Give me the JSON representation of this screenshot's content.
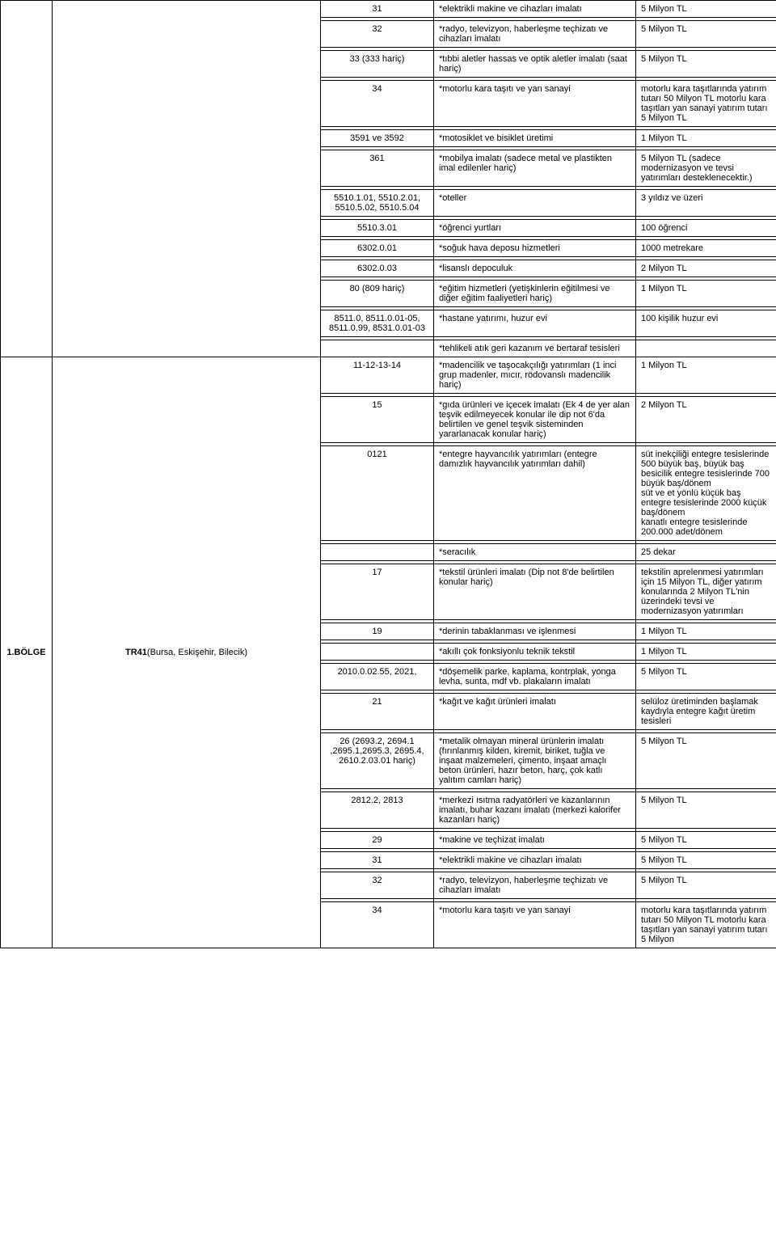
{
  "sections": [
    {
      "region_label": "",
      "area_label_html": "",
      "rows": [
        {
          "code": "31",
          "desc": "*elektrikli makine ve cihazları imalatı",
          "amount": "5 Milyon TL"
        },
        {
          "code": "32",
          "desc": "*radyo, televizyon, haberleşme teçhizatı ve cihazları imalatı",
          "amount": "5 Milyon TL"
        },
        {
          "code": "33 (333 hariç)",
          "desc": "*tıbbi aletler hassas ve optik aletler imalatı (saat hariç)",
          "amount": "5 Milyon TL"
        },
        {
          "code": "34",
          "desc": "*motorlu kara taşıtı ve yan sanayi",
          "amount": "motorlu kara taşıtlarında yatırım tutarı 50 Milyon TL motorlu kara taşıtları yan sanayi  yatırım tutarı 5 Milyon TL"
        },
        {
          "code": "3591 ve 3592",
          "desc": "*motosiklet ve bisiklet üretimi",
          "amount": "1 Milyon TL"
        },
        {
          "code": "361",
          "desc": "*mobilya imalatı (sadece metal ve plastikten imal edilenler hariç)",
          "amount": "5 Milyon TL (sadece modernizasyon ve tevsi yatırımları desteklenecektir.)"
        },
        {
          "code": "5510.1.01, 5510.2.01, 5510.5.02, 5510.5.04",
          "desc": "*oteller",
          "amount": "3 yıldız ve üzeri"
        },
        {
          "code": "5510.3.01",
          "desc": "*öğrenci yurtları",
          "amount": "100 öğrenci"
        },
        {
          "code": "6302.0.01",
          "desc": "*soğuk hava deposu hizmetleri",
          "amount": "1000 metrekare"
        },
        {
          "code": "6302.0.03",
          "desc": "*lisanslı depoculuk",
          "amount": "2 Milyon TL"
        },
        {
          "code": "80 (809 hariç)",
          "desc": "*eğitim hizmetleri (yetişkinlerin eğitilmesi ve diğer eğitim faaliyetleri hariç)",
          "amount": "1 Milyon TL"
        },
        {
          "code": "8511.0, 8511.0.01-05, 8511.0.99, 8531.0.01-03",
          "desc": "*hastane yatırımı, huzur evi",
          "amount": "100 kişilik huzur evi"
        },
        {
          "code": "",
          "desc": "*tehlikeli atık geri kazanım ve bertaraf tesisleri",
          "amount": ""
        }
      ]
    },
    {
      "region_label": "1.BÖLGE",
      "area_code": "TR41",
      "area_cities": "(Bursa, Eskişehir, Bilecik)",
      "rows": [
        {
          "code": "11-12-13-14",
          "desc": "*madencilik ve taşocakçılığı yatırımları (1 inci grup madenler, mıcır, rödovanslı madencilik hariç)",
          "amount": "1 Milyon TL"
        },
        {
          "code": "15",
          "desc": "*gıda ürünleri ve içecek imalatı (Ek 4 de yer alan teşvik edilmeyecek konular ile dip not 6'da belirtilen ve genel teşvik sisteminden yararlanacak konular hariç)",
          "amount": "2 Milyon TL"
        },
        {
          "code": "0121",
          "desc": "*entegre hayvancılık yatırımları (entegre damızlık hayvancılık yatırımları dahil)",
          "amount": "süt inekçiliği entegre tesislerinde 500 büyük baş, büyük baş besicilik entegre tesislerinde 700 büyük baş/dönem\nsüt ve et yönlü küçük baş entegre tesislerinde 2000 küçük baş/dönem\nkanatlı entegre tesislerinde 200.000 adet/dönem"
        },
        {
          "code": "",
          "desc": "*seracılık",
          "amount": "25 dekar"
        },
        {
          "code": "17",
          "desc": "*tekstil ürünleri imalatı (Dip not 8'de belirtilen konular hariç)",
          "amount": "tekstilin aprelenmesi yatırımları için 15 Milyon TL, diğer yatırım konularında 2 Milyon TL'nin üzerindeki tevsi ve modernizasyon yatırımları"
        },
        {
          "code": "19",
          "desc": "*derinin tabaklanması ve işlenmesi",
          "amount": "1 Milyon TL"
        },
        {
          "code": "",
          "desc": "*akıllı çok fonksiyonlu teknik tekstil",
          "amount": "1 Milyon TL"
        },
        {
          "code": "2010.0.02.55, 2021,",
          "desc": "*döşemelik parke, kaplama, kontrplak, yonga levha, sunta, mdf vb. plakaların imalatı",
          "amount": "5 Milyon TL"
        },
        {
          "code": "21",
          "desc": "*kağıt ve kağıt ürünleri imalatı",
          "amount": "selüloz üretiminden başlamak kaydıyla entegre kağıt üretim tesisleri"
        },
        {
          "code": "26 (2693.2, 2694.1 ,2695.1,2695.3, 2695.4, 2610.2.03.01 hariç)",
          "desc": "*metalik olmayan mineral ürünlerin imalatı (fırınlanmış kilden, kiremit, biriket, tuğla ve inşaat malzemeleri, çimento, inşaat amaçlı beton ürünleri, hazır beton, harç, çok katlı yalıtım camları hariç)",
          "amount": "5 Milyon TL"
        },
        {
          "code": "2812.2, 2813",
          "desc": "*merkezi ısıtma radyatörleri ve kazanlarının imalatı, buhar kazanı imalatı (merkezi kalorifer kazanları hariç)",
          "amount": "5 Milyon TL"
        },
        {
          "code": "29",
          "desc": "*makine ve teçhizat imalatı",
          "amount": "5 Milyon TL"
        },
        {
          "code": "31",
          "desc": "*elektrikli makine ve cihazları imalatı",
          "amount": "5 Milyon TL"
        },
        {
          "code": "32",
          "desc": "*radyo, televizyon, haberleşme teçhizatı ve cihazları imalatı",
          "amount": "5 Milyon TL"
        },
        {
          "code": "34",
          "desc": "*motorlu kara taşıtı ve yan sanayi",
          "amount": "motorlu kara taşıtlarında yatırım tutarı 50 Milyon TL motorlu kara taşıtları yan sanayi  yatırım tutarı 5 Milyon"
        }
      ]
    }
  ]
}
